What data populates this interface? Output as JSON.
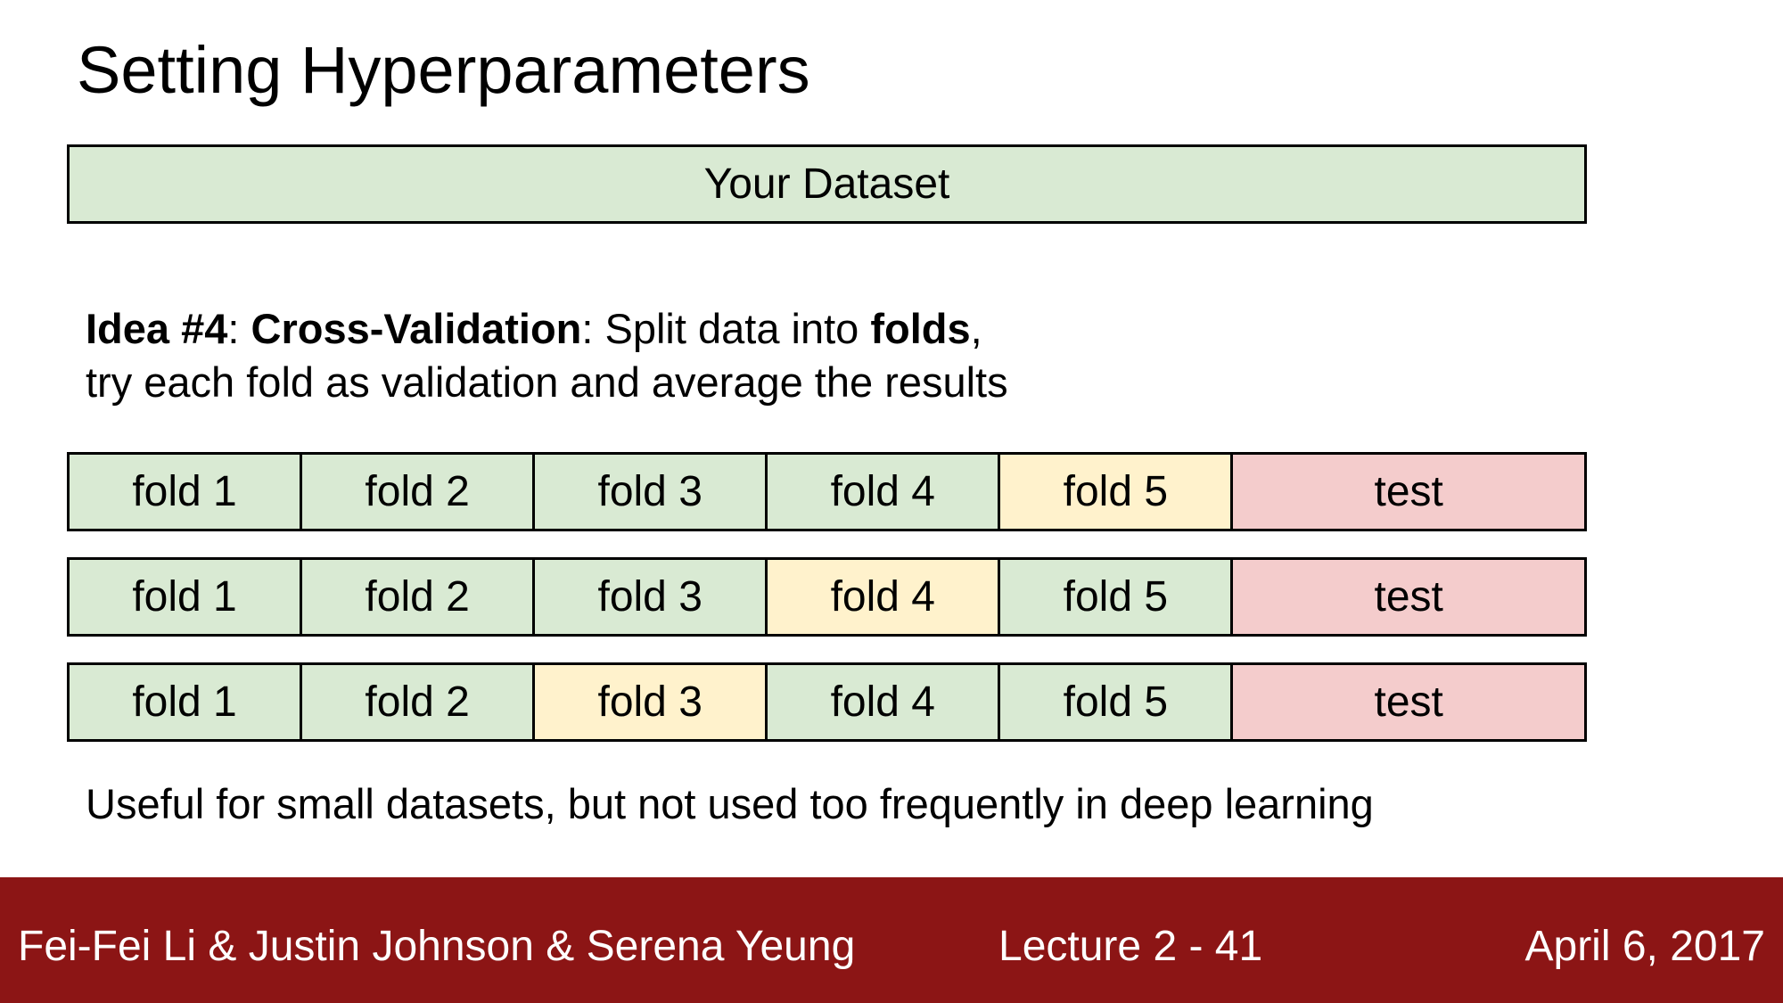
{
  "title": "Setting Hyperparameters",
  "dataset_label": "Your Dataset",
  "idea": {
    "label": "Idea #4",
    "sep1": ": ",
    "method": "Cross-Validation",
    "text1": ": Split data into ",
    "folds_word": "folds",
    "text2": ",",
    "line2": "try each fold as validation and average the results"
  },
  "rows": [
    {
      "cells": [
        "fold 1",
        "fold 2",
        "fold 3",
        "fold 4",
        "fold 5",
        "test"
      ],
      "validation_index": 4
    },
    {
      "cells": [
        "fold 1",
        "fold 2",
        "fold 3",
        "fold 4",
        "fold 5",
        "test"
      ],
      "validation_index": 3
    },
    {
      "cells": [
        "fold 1",
        "fold 2",
        "fold 3",
        "fold 4",
        "fold 5",
        "test"
      ],
      "validation_index": 2
    }
  ],
  "note": "Useful for small datasets, but not used too frequently in deep learning",
  "footer": {
    "authors": "Fei-Fei Li & Justin Johnson & Serena Yeung",
    "lecture": "Lecture 2 -   41",
    "date": "April 6, 2017"
  },
  "colors": {
    "train": "#d9ead3",
    "validation": "#fff2cc",
    "test": "#f4cccc",
    "footer": "#8c1515"
  }
}
